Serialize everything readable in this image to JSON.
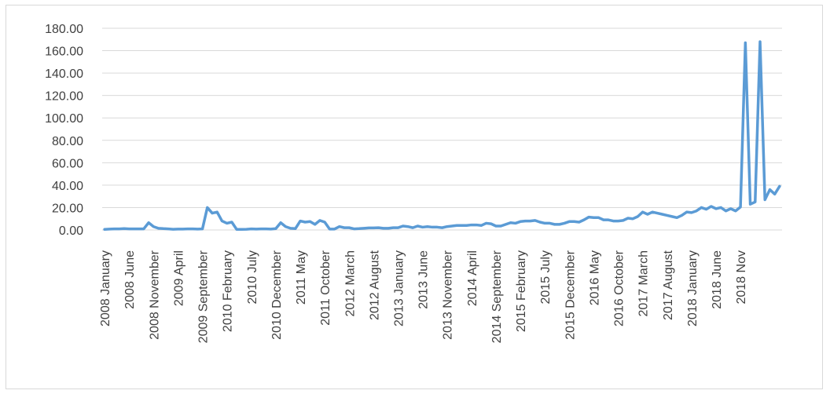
{
  "chart_data": {
    "type": "line",
    "title": "",
    "xlabel": "",
    "ylabel": "",
    "ylim": [
      0,
      180
    ],
    "yticks": [
      "0.00",
      "20.00",
      "40.00",
      "60.00",
      "80.00",
      "100.00",
      "120.00",
      "140.00",
      "160.00",
      "180.00"
    ],
    "grid": true,
    "legend": "none",
    "x_tick_labels": [
      "2008 January",
      "2008 June",
      "2008 November",
      "2009 April",
      "2009 September",
      "2010 February",
      "2010 July",
      "2010 December",
      "2011 May",
      "2011 October",
      "2012 March",
      "2012 August",
      "2013 January",
      "2013 June",
      "2013 November",
      "2014 April",
      "2014 September",
      "2015 February",
      "2015 July",
      "2015 December",
      "2016 May",
      "2016 October",
      "2017 March",
      "2017 August",
      "2018 January",
      "2018 June",
      "2018 Nov"
    ],
    "series": [
      {
        "name": "",
        "color": "#5b9bd5",
        "values": [
          0.5,
          0.8,
          1.0,
          1.0,
          1.2,
          1.0,
          1.0,
          1.0,
          1.0,
          6.5,
          3.0,
          1.5,
          1.2,
          1.0,
          0.6,
          0.8,
          0.8,
          1.0,
          1.0,
          0.8,
          1.0,
          20.0,
          15.0,
          16.0,
          8.0,
          6.0,
          7.0,
          0.5,
          0.5,
          0.6,
          1.0,
          0.8,
          1.0,
          1.0,
          0.8,
          1.2,
          6.5,
          3.0,
          1.5,
          1.2,
          8.0,
          7.0,
          7.5,
          5.0,
          8.5,
          7.0,
          0.8,
          0.8,
          3.0,
          2.0,
          2.0,
          1.0,
          1.2,
          1.5,
          1.8,
          1.8,
          2.0,
          1.5,
          1.5,
          2.0,
          2.0,
          3.5,
          3.0,
          2.0,
          3.5,
          2.5,
          3.0,
          2.5,
          2.5,
          2.0,
          3.0,
          3.5,
          4.0,
          4.0,
          4.0,
          4.5,
          4.5,
          4.0,
          6.0,
          5.5,
          3.5,
          3.5,
          5.0,
          6.5,
          6.0,
          7.5,
          8.0,
          8.0,
          8.5,
          7.0,
          6.0,
          6.0,
          5.0,
          5.0,
          6.0,
          7.5,
          7.5,
          7.0,
          9.0,
          11.5,
          11.0,
          11.0,
          9.0,
          9.0,
          8.0,
          8.0,
          8.5,
          10.5,
          10.0,
          12.0,
          16.0,
          14.0,
          16.0,
          15.0,
          14.0,
          13.0,
          12.0,
          11.0,
          13.0,
          16.0,
          15.5,
          17.0,
          20.0,
          18.5,
          21.0,
          19.0,
          20.0,
          17.0,
          19.0,
          17.0,
          20.5,
          167.0,
          23.0,
          25.0,
          168.0,
          27.0,
          36.0,
          32.0,
          39.0
        ]
      }
    ]
  }
}
